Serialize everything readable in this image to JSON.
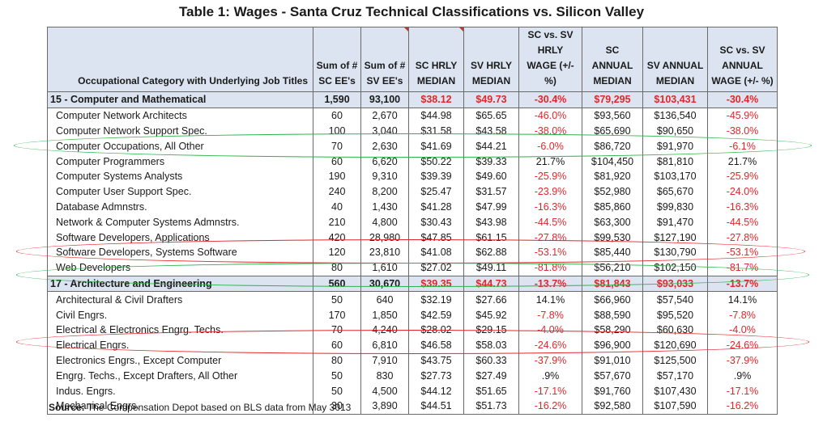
{
  "title": "Table 1: Wages - Santa Cruz Technical Classifications vs. Silicon Valley",
  "headers": [
    "Occupational Category with Underlying Job Titles",
    "Sum of # SC EE's",
    "Sum of # SV EE's",
    "SC HRLY MEDIAN",
    "SV HRLY MEDIAN",
    "SC vs. SV HRLY WAGE (+/- %)",
    "SC ANNUAL MEDIAN",
    "SV ANNUAL MEDIAN",
    "SC vs. SV ANNUAL WAGE (+/- %)"
  ],
  "rows": [
    {
      "type": "category",
      "cells": [
        "15 - Computer and Mathematical",
        "1,590",
        "93,100",
        "$38.12",
        "$49.73",
        "-30.4%",
        "$79,295",
        "$103,431",
        "-30.4%"
      ]
    },
    {
      "type": "item",
      "cells": [
        "Computer Network Architects",
        "60",
        "2,670",
        "$44.98",
        "$65.65",
        "-46.0%",
        "$93,560",
        "$136,540",
        "-45.9%"
      ]
    },
    {
      "type": "item",
      "cells": [
        "Computer Network Support Spec.",
        "100",
        "3,040",
        "$31.58",
        "$43.58",
        "-38.0%",
        "$65,690",
        "$90,650",
        "-38.0%"
      ]
    },
    {
      "type": "item",
      "cells": [
        "Computer Occupations, All Other",
        "70",
        "2,630",
        "$41.69",
        "$44.21",
        "-6.0%",
        "$86,720",
        "$91,970",
        "-6.1%"
      ]
    },
    {
      "type": "item",
      "cells": [
        "Computer Programmers",
        "60",
        "6,620",
        "$50.22",
        "$39.33",
        "21.7%",
        "$104,450",
        "$81,810",
        "21.7%"
      ]
    },
    {
      "type": "item",
      "cells": [
        "Computer Systems Analysts",
        "190",
        "9,310",
        "$39.39",
        "$49.60",
        "-25.9%",
        "$81,920",
        "$103,170",
        "-25.9%"
      ]
    },
    {
      "type": "item",
      "cells": [
        "Computer User Support Spec.",
        "240",
        "8,200",
        "$25.47",
        "$31.57",
        "-23.9%",
        "$52,980",
        "$65,670",
        "-24.0%"
      ]
    },
    {
      "type": "item",
      "cells": [
        "Database Admnstrs.",
        "40",
        "1,430",
        "$41.28",
        "$47.99",
        "-16.3%",
        "$85,860",
        "$99,830",
        "-16.3%"
      ]
    },
    {
      "type": "item",
      "cells": [
        "Network & Computer Systems Admnstrs.",
        "210",
        "4,800",
        "$30.43",
        "$43.98",
        "-44.5%",
        "$63,300",
        "$91,470",
        "-44.5%"
      ]
    },
    {
      "type": "item",
      "cells": [
        "Software Developers, Applications",
        "420",
        "28,980",
        "$47.85",
        "$61.15",
        "-27.8%",
        "$99,530",
        "$127,190",
        "-27.8%"
      ]
    },
    {
      "type": "item",
      "cells": [
        "Software Developers, Systems Software",
        "120",
        "23,810",
        "$41.08",
        "$62.88",
        "-53.1%",
        "$85,440",
        "$130,790",
        "-53.1%"
      ]
    },
    {
      "type": "item",
      "cells": [
        "Web Developers",
        "80",
        "1,610",
        "$27.02",
        "$49.11",
        "-81.8%",
        "$56,210",
        "$102,150",
        "-81.7%"
      ]
    },
    {
      "type": "category",
      "cells": [
        "17 - Architecture and Engineering",
        "560",
        "30,670",
        "$39.35",
        "$44.73",
        "-13.7%",
        "$81,843",
        "$93,033",
        "-13.7%"
      ]
    },
    {
      "type": "item",
      "cells": [
        "Architectural & Civil Drafters",
        "50",
        "640",
        "$32.19",
        "$27.66",
        "14.1%",
        "$66,960",
        "$57,540",
        "14.1%"
      ]
    },
    {
      "type": "item",
      "cells": [
        "Civil Engrs.",
        "170",
        "1,850",
        "$42.59",
        "$45.92",
        "-7.8%",
        "$88,590",
        "$95,520",
        "-7.8%"
      ]
    },
    {
      "type": "item",
      "cells": [
        "Electrical & Electronics Engrg. Techs.",
        "70",
        "4,240",
        "$28.02",
        "$29.15",
        "-4.0%",
        "$58,290",
        "$60,630",
        "-4.0%"
      ]
    },
    {
      "type": "item",
      "cells": [
        "Electrical Engrs.",
        "60",
        "6,810",
        "$46.58",
        "$58.03",
        "-24.6%",
        "$96,900",
        "$120,690",
        "-24.6%"
      ]
    },
    {
      "type": "item",
      "cells": [
        "Electronics Engrs., Except Computer",
        "80",
        "7,910",
        "$43.75",
        "$60.33",
        "-37.9%",
        "$91,010",
        "$125,500",
        "-37.9%"
      ]
    },
    {
      "type": "item",
      "cells": [
        "Engrg. Techs., Except Drafters, All Other",
        "50",
        "830",
        "$27.73",
        "$27.49",
        ".9%",
        "$57,670",
        "$57,170",
        ".9%"
      ]
    },
    {
      "type": "item",
      "cells": [
        "Indus. Engrs.",
        "50",
        "4,500",
        "$44.12",
        "$51.65",
        "-17.1%",
        "$91,760",
        "$107,430",
        "-17.1%"
      ]
    },
    {
      "type": "item",
      "cells": [
        "Mechanical Engrs.",
        "30",
        "3,890",
        "$44.51",
        "$51.73",
        "-16.2%",
        "$92,580",
        "$107,590",
        "-16.2%"
      ]
    }
  ],
  "source": {
    "label": "Source:",
    "text": " The Compensation Depot based on BLS data from May 3013"
  },
  "colors": {
    "header_bg": "#dbe4f0",
    "negative_text": "#e3262a",
    "highlight_green": "#2db34a",
    "highlight_red": "#e3262a"
  }
}
